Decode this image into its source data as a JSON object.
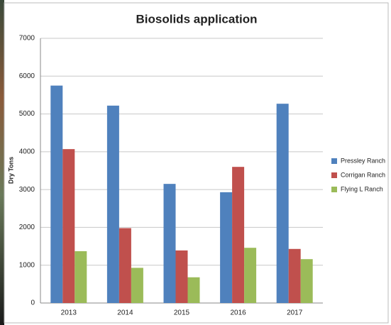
{
  "chart_data": {
    "type": "bar",
    "title": "Biosolids application",
    "y_label": "Dry Tons",
    "categories": [
      "2013",
      "2014",
      "2015",
      "2016",
      "2017"
    ],
    "series": [
      {
        "name": "Pressley Ranch",
        "color": "#4f81bd",
        "values": [
          5750,
          5220,
          3150,
          2930,
          5270
        ]
      },
      {
        "name": "Corrigan Ranch",
        "color": "#c0504d",
        "values": [
          4070,
          1980,
          1390,
          3600,
          1430
        ]
      },
      {
        "name": "Flying L Ranch",
        "color": "#9bbb59",
        "values": [
          1370,
          930,
          680,
          1460,
          1160
        ]
      }
    ],
    "ylim": [
      0,
      7000
    ],
    "yticks": [
      0,
      1000,
      2000,
      3000,
      4000,
      5000,
      6000,
      7000
    ],
    "grid": true,
    "legend": "right"
  }
}
